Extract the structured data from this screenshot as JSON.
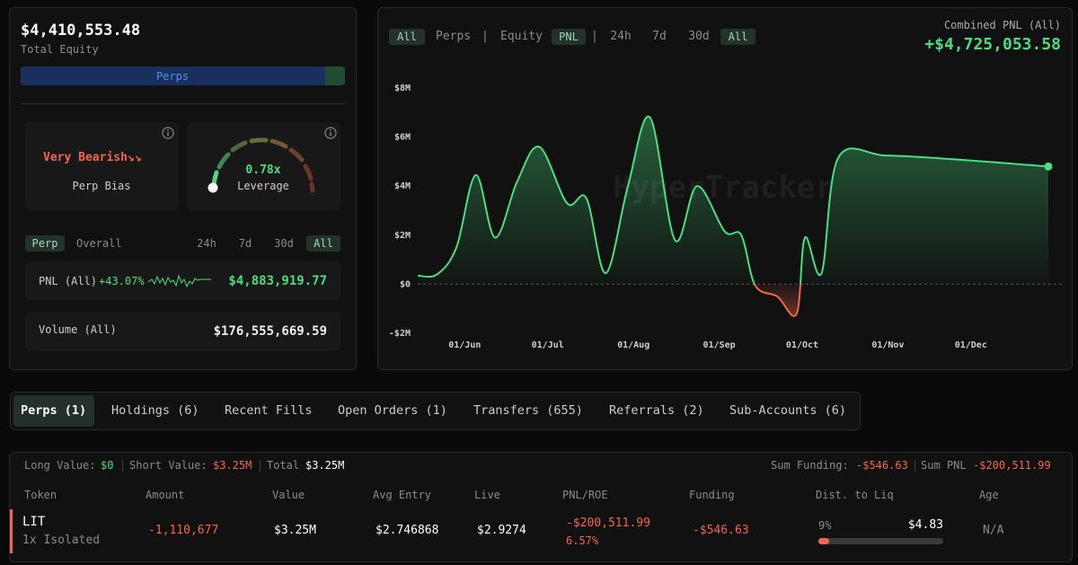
{
  "equity": {
    "value": "$4,410,553.48",
    "label": "Total Equity",
    "bar_label": "Perps"
  },
  "bias": {
    "value": "Very Bearish",
    "label": "Perp Bias"
  },
  "leverage": {
    "value": "0.78x",
    "label": "Leverage"
  },
  "perf_tabs": [
    "Perp",
    "Overall"
  ],
  "perf_ranges": [
    "24h",
    "7d",
    "30d",
    "All"
  ],
  "pnl": {
    "label": "PNL (All)",
    "change": "+43.07%",
    "value": "$4,883,919.77"
  },
  "volume": {
    "label": "Volume (All)",
    "value": "$176,555,669.59"
  },
  "chart_panel": {
    "tabs": [
      "All",
      "Perps",
      "Equity",
      "PNL"
    ],
    "ranges": [
      "24h",
      "7d",
      "30d",
      "All"
    ],
    "combined_label": "Combined PNL (All)",
    "combined_value": "+$4,725,053.58",
    "watermark": "HyperTracker"
  },
  "chart_data": {
    "type": "line",
    "x": [
      "15/May",
      "22/May",
      "29/May",
      "05/Jun",
      "12/Jun",
      "20/Jun",
      "28/Jun",
      "08/Jul",
      "15/Jul",
      "22/Jul",
      "30/Jul",
      "07/Aug",
      "16/Aug",
      "24/Aug",
      "03/Sep",
      "09/Sep",
      "14/Sep",
      "22/Sep",
      "29/Sep",
      "02/Oct",
      "08/Oct",
      "14/Oct",
      "31/Oct",
      "24/Nov",
      "29/Dec"
    ],
    "values": [
      350000,
      400000,
      1500000,
      4450000,
      1900000,
      4200000,
      5600000,
      3300000,
      3500000,
      450000,
      4000000,
      6800000,
      1800000,
      4000000,
      2150000,
      2000000,
      -50000,
      -500000,
      -1200000,
      1900000,
      450000,
      5150000,
      5250000,
      5100000,
      4800000
    ],
    "color": "#4ade80",
    "negative_color": "#f4664a",
    "xlim": [
      "15/May",
      "29/Dec"
    ],
    "xticks": [
      "01/Jun",
      "01/Jul",
      "01/Aug",
      "01/Sep",
      "01/Oct",
      "01/Nov",
      "01/Dec"
    ],
    "ylim": [
      -2000000,
      8000000
    ],
    "yticks": [
      {
        "value": -2000000,
        "label": "-$2M"
      },
      {
        "value": 0,
        "label": "$0"
      },
      {
        "value": 2000000,
        "label": "$2M"
      },
      {
        "value": 4000000,
        "label": "$4M"
      },
      {
        "value": 6000000,
        "label": "$6M"
      },
      {
        "value": 8000000,
        "label": "$8M"
      }
    ]
  },
  "tabs": [
    "Perps (1)",
    "Holdings (6)",
    "Recent Fills",
    "Open Orders (1)",
    "Transfers (655)",
    "Referrals (2)",
    "Sub-Accounts (6)"
  ],
  "summary": {
    "long_label": "Long Value:",
    "long_value": "$0",
    "short_label": "Short Value:",
    "short_value": "$3.25M",
    "total_label": "Total",
    "total_value": "$3.25M",
    "funding_label": "Sum Funding:",
    "funding_value": "-$546.63",
    "sum_pnl_label": "Sum PNL",
    "sum_pnl_value": "-$200,511.99"
  },
  "table": {
    "headers": [
      "Token",
      "Amount",
      "Value",
      "Avg Entry",
      "Live",
      "PNL/ROE",
      "Funding",
      "Dist. to Liq",
      "Age"
    ],
    "rows": [
      {
        "token": "LIT",
        "margin": "1x Isolated",
        "amount": "-1,110,677",
        "value": "$3.25M",
        "avg_entry": "$2.746868",
        "live": "$2.9274",
        "pnl": "-$200,511.99",
        "roe": "6.57%",
        "funding": "-$546.63",
        "dist": "9%",
        "liq": "$4.83",
        "age": "N/A"
      }
    ]
  }
}
